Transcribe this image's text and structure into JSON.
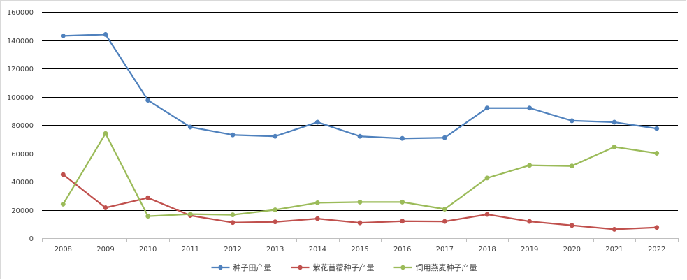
{
  "chart_data": {
    "type": "line",
    "title": "",
    "xlabel": "",
    "ylabel": "",
    "categories": [
      "2008",
      "2009",
      "2010",
      "2011",
      "2012",
      "2013",
      "2014",
      "2015",
      "2016",
      "2017",
      "2018",
      "2019",
      "2020",
      "2021",
      "2022"
    ],
    "ylim": [
      0,
      160000
    ],
    "yticks": [
      0,
      20000,
      40000,
      60000,
      80000,
      100000,
      120000,
      140000,
      160000
    ],
    "grid": true,
    "legend_position": "bottom",
    "series": [
      {
        "name": "种子田产量",
        "color": "#4f81bd",
        "values": [
          143000,
          144000,
          97500,
          78500,
          73000,
          72000,
          82000,
          72000,
          70500,
          71000,
          92000,
          92000,
          83000,
          82000,
          77500
        ]
      },
      {
        "name": "紫花苜蓿种子产量",
        "color": "#c0504d",
        "values": [
          45000,
          21500,
          28500,
          16000,
          11000,
          11500,
          13800,
          10800,
          12000,
          11800,
          16800,
          11800,
          9000,
          6200,
          7500
        ]
      },
      {
        "name": "饲用燕麦种子产量",
        "color": "#9bbb59",
        "values": [
          24000,
          74000,
          15500,
          17000,
          16500,
          20000,
          25000,
          25500,
          25500,
          20500,
          42500,
          51500,
          51000,
          64500,
          60000
        ]
      }
    ]
  }
}
